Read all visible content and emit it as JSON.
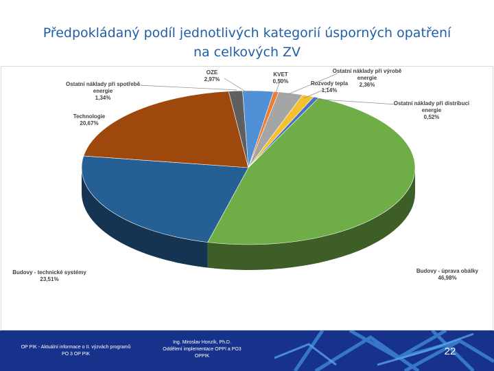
{
  "slide": {
    "title_line1": "Předpokládaný podíl jednotlivých kategorií úsporných opatření",
    "title_line2": "na celkových ZV"
  },
  "chart_data": {
    "type": "pie",
    "title": "",
    "slices": [
      {
        "name": "OZE",
        "value": 2.97,
        "label": "2,97%",
        "color": "#4f90d6"
      },
      {
        "name": "KVET",
        "value": 0.5,
        "label": "0,50%",
        "color": "#ef7d31"
      },
      {
        "name": "Ostatní náklady při výrobě energie",
        "value": 2.36,
        "label": "2,36%",
        "color": "#a5a5a5"
      },
      {
        "name": "Rozvody tepla",
        "value": 1.14,
        "label": "1,14%",
        "color": "#f5c12e"
      },
      {
        "name": "Ostatní náklady při distribuci energie",
        "value": 0.52,
        "label": "0,52%",
        "color": "#4472c4"
      },
      {
        "name": "Budovy - úprava obálky",
        "value": 46.98,
        "label": "46,98%",
        "color": "#6fad47"
      },
      {
        "name": "Budovy - technické systémy",
        "value": 23.51,
        "label": "23,51%",
        "color": "#265f93"
      },
      {
        "name": "Technologie",
        "value": 20.67,
        "label": "20,67%",
        "color": "#9e480d"
      },
      {
        "name": "Ostatní náklady při spotřebě energie",
        "value": 1.34,
        "label": "1,34%",
        "color": "#5f5f5f"
      }
    ]
  },
  "footer": {
    "left_text": "OP PIK - Aktuální informace o II. výzvách programů PO 3 OP PIK",
    "mid_line1": "Ing. Miroslav Honzík, Ph.D.",
    "mid_line2": "Oddělení implementace OPPI a PO3",
    "mid_line3": "OPPIK",
    "page_number": "22"
  }
}
